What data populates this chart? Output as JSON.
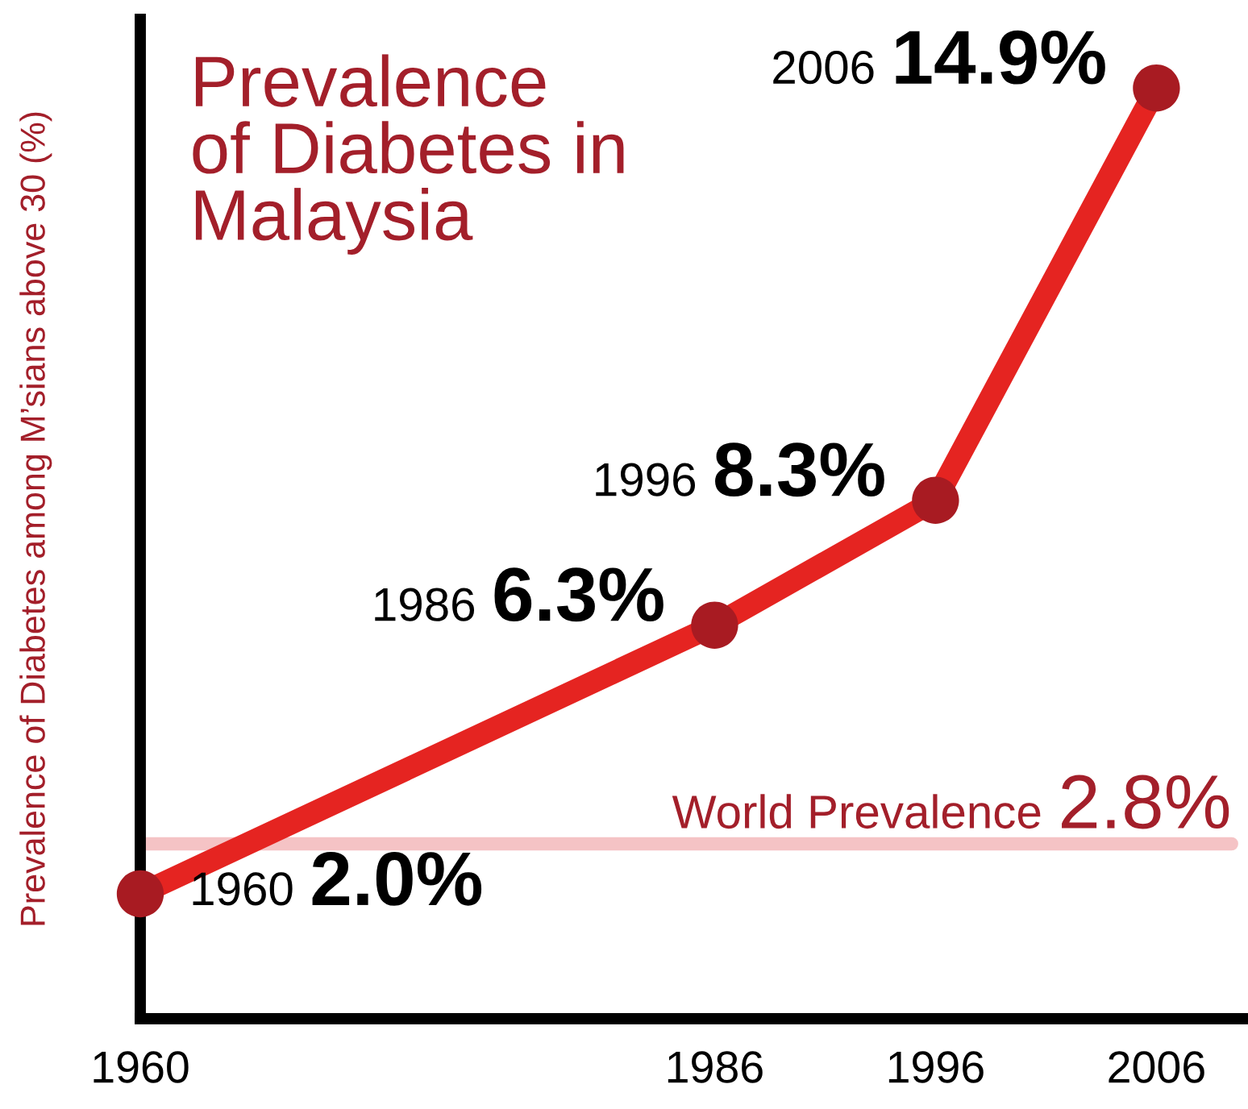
{
  "chart_data": {
    "type": "line",
    "title": "Prevalence\nof Diabetes in\nMalaysia",
    "ylabel": "Prevalence of Diabetes among M’sians above 30 (%)",
    "x": [
      1960,
      1986,
      1996,
      2006
    ],
    "series": [
      {
        "color": "#e52421",
        "values": [
          2.0,
          6.3,
          8.3,
          14.9
        ],
        "line_style": "solid"
      },
      {
        "type": "scatter",
        "color": "#a81b22",
        "marker": "circle",
        "values": [
          2.0,
          6.3,
          8.3,
          14.9
        ],
        "value_labels": [
          "1960 2.0%",
          "1986 6.3%",
          "1996 8.3%",
          "2006 14.9%"
        ]
      }
    ],
    "xlim": [
      1960,
      2010
    ],
    "xticks": [
      1960,
      1986,
      1996,
      2006
    ],
    "ylim": [
      0,
      16
    ],
    "tick_labels": "x",
    "ref_lines": [
      {
        "axis": "y",
        "value": 2.8,
        "label": "World Prevalence 2.8%",
        "color": "#f5c3c5"
      }
    ]
  }
}
